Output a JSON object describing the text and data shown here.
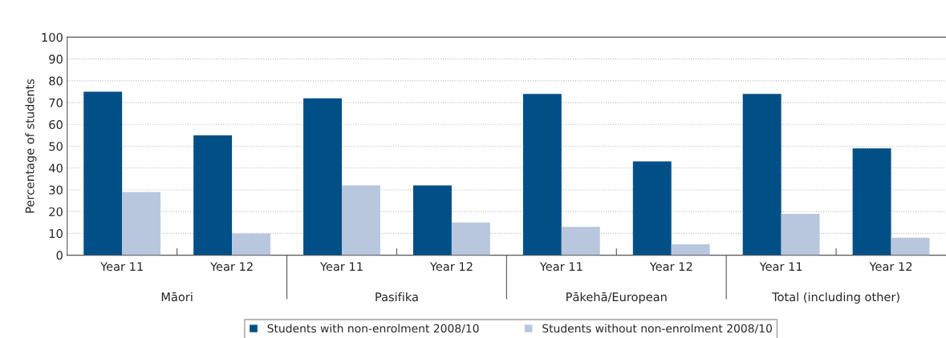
{
  "chart_data": {
    "type": "bar",
    "ylabel": "Percentage of students",
    "categories": [
      "Year 11",
      "Year 12",
      "Year 11",
      "Year 12",
      "Year 11",
      "Year 12",
      "Year 11",
      "Year 12"
    ],
    "series": [
      {
        "name": "Students with non-enrolment 2008/10",
        "color": "#004f87",
        "values": [
          75,
          55,
          72,
          32,
          74,
          43,
          74,
          49
        ]
      },
      {
        "name": "Students without non-enrolment 2008/10",
        "color": "#b8c7dd",
        "values": [
          29,
          10,
          32,
          15,
          13,
          5,
          19,
          8
        ]
      }
    ],
    "annotations": [
      "Māori",
      "Pasifika",
      "Pākehā/European",
      "Total (including other)"
    ],
    "ylim": [
      0,
      100
    ],
    "yticks": [
      0,
      10,
      20,
      30,
      40,
      50,
      60,
      70,
      80,
      90,
      100
    ],
    "grid": "y",
    "legend": "bottom"
  }
}
